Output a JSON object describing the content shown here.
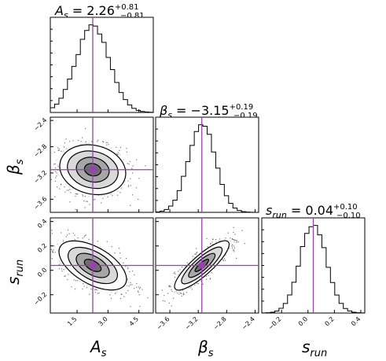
{
  "titles": {
    "A_s": {
      "symbol": "A",
      "sub": "s",
      "value": "2.26",
      "plus": "+0.81",
      "minus": "−0.81"
    },
    "beta_s": {
      "symbol": "β",
      "sub": "s",
      "value": "−3.15",
      "plus": "+0.19",
      "minus": "−0.19"
    },
    "s_run": {
      "symbol": "s",
      "sub": "run",
      "value": "0.04",
      "plus": "+0.10",
      "minus": "−0.10"
    }
  },
  "axis_labels": {
    "x_A_s": {
      "symbol": "A",
      "sub": "s"
    },
    "x_beta_s": {
      "symbol": "β",
      "sub": "s"
    },
    "x_s_run": {
      "symbol": "s",
      "sub": "run"
    },
    "y_beta_s": {
      "symbol": "β",
      "sub": "s"
    },
    "y_s_run": {
      "symbol": "s",
      "sub": "run"
    }
  },
  "colors": {
    "truth": "#9b3fb5",
    "hist": "#000000",
    "points": "#000000"
  },
  "chart_data": {
    "type": "corner",
    "parameters": [
      "A_s",
      "beta_s",
      "s_run"
    ],
    "truths": {
      "A_s": 2.26,
      "beta_s": -3.15,
      "s_run": 0.04
    },
    "ranges": {
      "A_s": [
        0.2,
        5.2
      ],
      "beta_s": [
        -3.8,
        -2.35
      ],
      "s_run": [
        -0.35,
        0.43
      ]
    },
    "ticks": {
      "A_s": {
        "values": [
          1.5,
          3.0,
          4.5
        ],
        "labels": [
          "1.5",
          "3.0",
          "4.5"
        ]
      },
      "beta_s": {
        "values": [
          -3.6,
          -3.2,
          -2.8,
          -2.4
        ],
        "labels": [
          "−3.6",
          "−3.2",
          "−2.8",
          "−2.4"
        ]
      },
      "s_run": {
        "values": [
          -0.2,
          0.0,
          0.2,
          0.4
        ],
        "labels": [
          "−0.2",
          "0.0",
          "0.2",
          "0.4"
        ]
      }
    },
    "marginals": {
      "A_s": {
        "mean": 2.26,
        "sd": 0.81
      },
      "beta_s": {
        "mean": -3.15,
        "sd": 0.19
      },
      "s_run": {
        "mean": 0.04,
        "sd": 0.1
      }
    },
    "correlations": {
      "A_s|beta_s": -0.15,
      "A_s|s_run": -0.55,
      "beta_s|s_run": 0.85
    },
    "contour_sigma_levels": [
      0.5,
      1.0,
      1.5,
      2.0
    ]
  }
}
